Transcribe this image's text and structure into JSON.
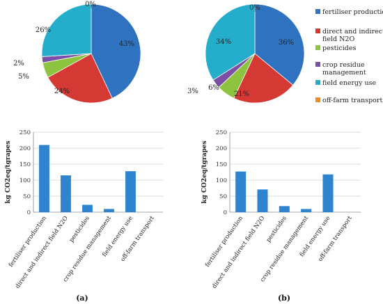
{
  "colors": {
    "fertiliser production": "#2f73c0",
    "direct and indirect field N2O": "#d43a33",
    "pesticides": "#8cc43f",
    "crop residue management": "#7b4fa5",
    "field energy use": "#25aecc",
    "off-farm transport": "#f08a26",
    "bar": "#2f84cf",
    "grid": "#d0d0d0",
    "axis": "#888888"
  },
  "legend": {
    "entries": [
      "fertiliser production",
      "direct and indirect field N2O",
      "pesticides",
      "crop residue management",
      "field energy use",
      "off-farm transport"
    ]
  },
  "panels": [
    {
      "label": "(a)"
    },
    {
      "label": "(b)"
    }
  ],
  "chart_data": [
    {
      "type": "pie",
      "panel": "(a)",
      "categories": [
        "fertiliser production",
        "direct and indirect field N2O",
        "pesticides",
        "crop residue management",
        "field energy use",
        "off-farm transport"
      ],
      "values": [
        43,
        24,
        5,
        2,
        26,
        0
      ],
      "data_labels": [
        "43%",
        "24%",
        "5%",
        "2%",
        "26%",
        "0%"
      ],
      "title": ""
    },
    {
      "type": "pie",
      "panel": "(b)",
      "categories": [
        "fertiliser production",
        "direct and indirect field N2O",
        "pesticides",
        "crop residue management",
        "field energy use",
        "off-farm transport"
      ],
      "values": [
        36,
        21,
        6,
        3,
        34,
        0
      ],
      "data_labels": [
        "36%",
        "21%",
        "6%",
        "3%",
        "34%",
        "0%"
      ],
      "title": ""
    },
    {
      "type": "bar",
      "panel": "(a)",
      "categories": [
        "fertiliser production",
        "direct and indirect field N2O",
        "pesticides",
        "crop residue management",
        "field energy use",
        "off-farm transport"
      ],
      "values": [
        210,
        115,
        23,
        10,
        128,
        0
      ],
      "ylabel": "kg CO2eq/tgrapes",
      "xlabel": "",
      "ylim": [
        0,
        250
      ],
      "yticks": [
        0,
        50,
        100,
        150,
        200,
        250
      ],
      "grid": true
    },
    {
      "type": "bar",
      "panel": "(b)",
      "categories": [
        "fertiliser production",
        "direct and indirect field N2O",
        "pesticides",
        "crop residue management",
        "field energy use",
        "off-farm transport"
      ],
      "values": [
        127,
        71,
        19,
        10,
        118,
        0
      ],
      "ylabel": "kg CO2eq/tgrapes",
      "xlabel": "",
      "ylim": [
        0,
        250
      ],
      "yticks": [
        0,
        50,
        100,
        150,
        200,
        250
      ],
      "grid": true
    }
  ]
}
